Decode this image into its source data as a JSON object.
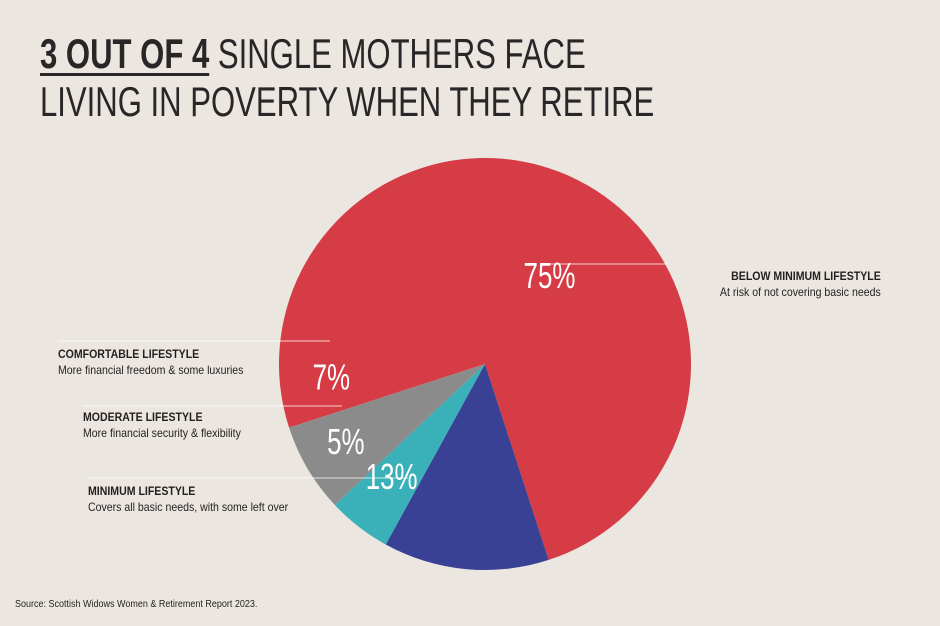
{
  "title": {
    "highlight": "3 OUT OF 4",
    "rest_line1": " SINGLE MOTHERS FACE",
    "line2": "LIVING IN POVERTY WHEN THEY RETIRE"
  },
  "chart_data": {
    "type": "pie",
    "slices": [
      {
        "label": "BELOW MINIMUM LIFESTYLE",
        "description": "At risk of not covering basic needs",
        "value": 75,
        "display": "75%",
        "color": "#d63c45"
      },
      {
        "label": "MINIMUM LIFESTYLE",
        "description": "Covers all basic needs, with some left over",
        "value": 13,
        "display": "13%",
        "color": "#384194"
      },
      {
        "label": "MODERATE LIFESTYLE",
        "description": "More financial security & flexibility",
        "value": 5,
        "display": "5%",
        "color": "#3ab0b8"
      },
      {
        "label": "COMFORTABLE LIFESTYLE",
        "description": "More financial freedom & some luxuries",
        "value": 7,
        "display": "7%",
        "color": "#8c8b8b"
      }
    ]
  },
  "source": "Source: Scottish Widows Women & Retirement Report 2023."
}
